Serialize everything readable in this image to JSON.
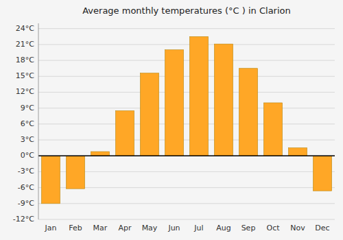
{
  "chart_data": {
    "type": "bar",
    "title": "Average monthly temperatures (°C ) in Clarion",
    "categories": [
      "Jan",
      "Feb",
      "Mar",
      "Apr",
      "May",
      "Jun",
      "Jul",
      "Aug",
      "Sep",
      "Oct",
      "Nov",
      "Dec"
    ],
    "values": [
      -9.0,
      -6.2,
      0.8,
      8.5,
      15.6,
      20.0,
      22.5,
      21.1,
      16.5,
      10.0,
      1.5,
      -6.6
    ],
    "color": "#FFA726",
    "ylim": [
      -12,
      25
    ],
    "yticks": [
      {
        "value": -12,
        "label": "-12°C"
      },
      {
        "value": -9,
        "label": "-9°C"
      },
      {
        "value": -6,
        "label": "-6°C"
      },
      {
        "value": -3,
        "label": "-3°C"
      },
      {
        "value": 0,
        "label": "0°C"
      },
      {
        "value": 3,
        "label": "3°C"
      },
      {
        "value": 6,
        "label": "6°C"
      },
      {
        "value": 9,
        "label": "9°C"
      },
      {
        "value": 12,
        "label": "12°C"
      },
      {
        "value": 15,
        "label": "15°C"
      },
      {
        "value": 18,
        "label": "18°C"
      },
      {
        "value": 21,
        "label": "21°C"
      },
      {
        "value": 24,
        "label": "24°C"
      }
    ],
    "grid": true
  }
}
